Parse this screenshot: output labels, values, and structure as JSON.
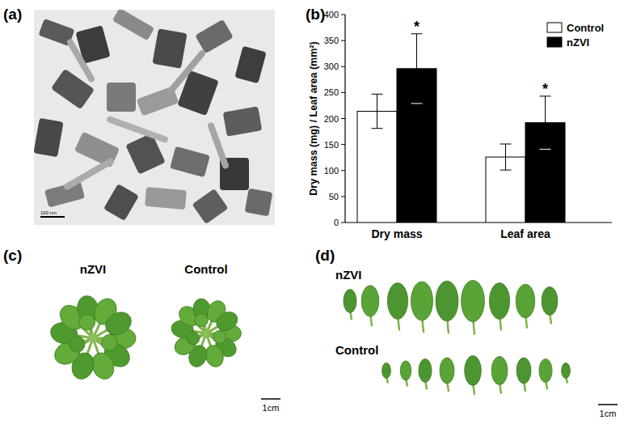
{
  "panel_labels": [
    "(a)",
    "(b)",
    "(c)",
    "(d)"
  ],
  "tem": {
    "scale_bar": "100 nm"
  },
  "chart_data": {
    "type": "bar",
    "y_label": "Dry mass (mg) / Leaf area (mm²)",
    "categories": [
      "Dry mass",
      "Leaf area"
    ],
    "series": [
      {
        "name": "Control",
        "color": "#ffffff",
        "values": [
          214,
          126
        ],
        "errors": [
          33,
          25
        ]
      },
      {
        "name": "nZVI",
        "color": "#000000",
        "values": [
          296,
          192
        ],
        "errors": [
          67,
          51
        ],
        "annotations": [
          "*",
          "*"
        ]
      }
    ],
    "ylim": [
      0,
      400
    ],
    "yticks": [
      0,
      50,
      100,
      150,
      200,
      250,
      300,
      350,
      400
    ],
    "legend": "upper right"
  },
  "plants": {
    "labels": [
      "nZVI",
      "Control"
    ],
    "scale_bar": "1cm"
  },
  "leaves": {
    "labels": [
      "nZVI",
      "Control"
    ],
    "scale_bar": "1cm"
  }
}
